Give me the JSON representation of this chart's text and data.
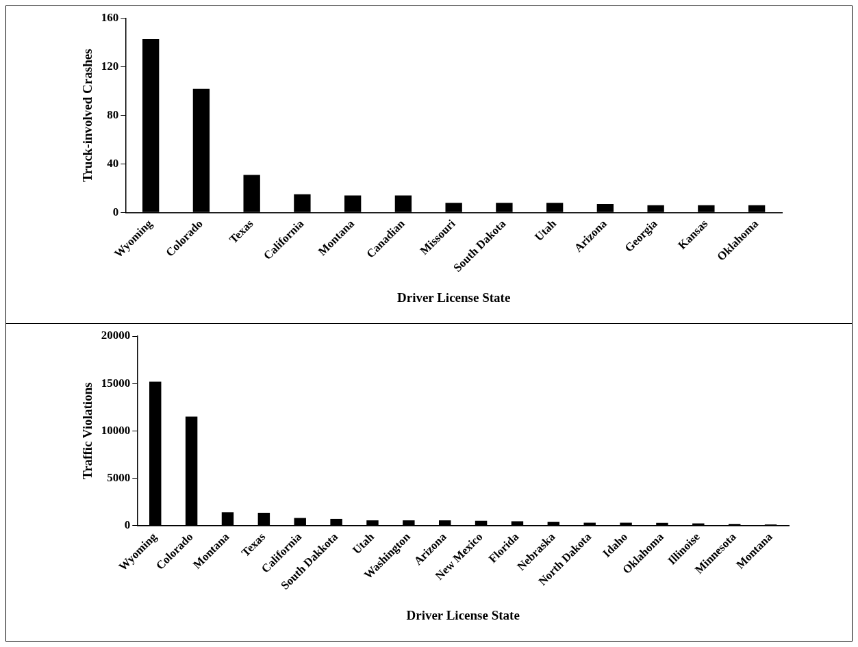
{
  "chart_data": [
    {
      "type": "bar",
      "xlabel": "Driver License State",
      "ylabel": "Truck-involved Crashes",
      "categories": [
        "Wyoming",
        "Colorado",
        "Texas",
        "California",
        "Montana",
        "Canadian",
        "Missouri",
        "South Dakota",
        "Utah",
        "Arizona",
        "Georgia",
        "Kansas",
        "Oklahoma"
      ],
      "values": [
        143,
        102,
        31,
        15,
        14,
        14,
        8,
        8,
        8,
        7,
        6,
        6,
        6
      ],
      "color": "#000000",
      "ylim": [
        0,
        160
      ],
      "yticks": [
        0,
        40,
        80,
        120,
        160
      ],
      "grid": false,
      "legend": false
    },
    {
      "type": "bar",
      "xlabel": "Driver License State",
      "ylabel": "Traffic Violations",
      "categories": [
        "Wyoming",
        "Colorado",
        "Montana",
        "Texas",
        "California",
        "South Dakkota",
        "Utah",
        "Washington",
        "Arizona",
        "New Mexico",
        "Florida",
        "Nebraska",
        "North Dakota",
        "Idaho",
        "Oklahoma",
        "Illinoise",
        "Minnesota",
        "Montana"
      ],
      "values": [
        15200,
        11500,
        1400,
        1350,
        800,
        700,
        550,
        550,
        550,
        500,
        450,
        400,
        300,
        300,
        280,
        220,
        180,
        120
      ],
      "color": "#000000",
      "ylim": [
        0,
        20000
      ],
      "yticks": [
        0,
        5000,
        10000,
        15000,
        20000
      ],
      "grid": false,
      "legend": false
    }
  ]
}
